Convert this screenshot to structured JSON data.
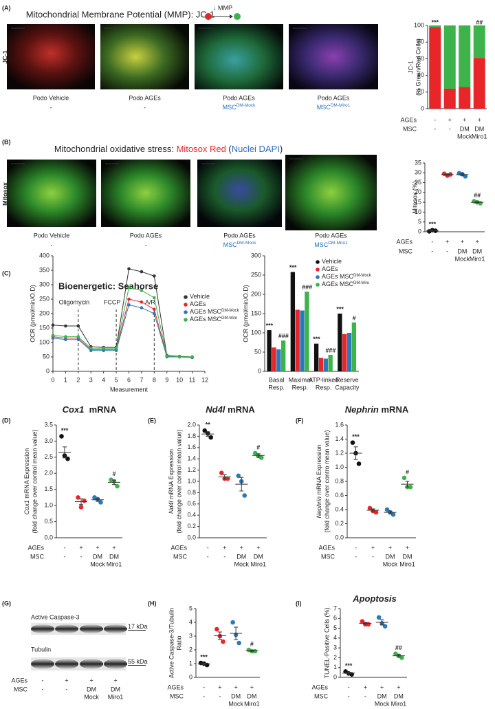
{
  "panel_labels": [
    "(A)",
    "(B)",
    "(C)",
    "(D)",
    "(E)",
    "(F)",
    "(G)",
    "(H)",
    "(I)"
  ],
  "panels": {
    "A": {
      "title": "Mitochondrial Membrane Potential (MMP): JC-1",
      "arrow_label": "↓ MMP",
      "side_label": "JC-1",
      "captions": [
        {
          "line1": "Podo Vehicle",
          "line2": "-"
        },
        {
          "line1": "Podo AGEs",
          "line2": "-"
        },
        {
          "line1": "Podo AGEs",
          "line2": {
            "text": "MSC",
            "sup": "DM-Mock",
            "color": "#2a6ebd"
          }
        },
        {
          "line1": "Podo AGEs",
          "line2": {
            "text": "MSC",
            "sup": "DM-Miro1",
            "color": "#2a6ebd"
          }
        }
      ]
    },
    "B": {
      "title": [
        {
          "text": "Mitochondrial oxidative stress: ",
          "color": "#222"
        },
        {
          "text": "Mitosox Red",
          "color": "#e8262a"
        },
        {
          "text": " (",
          "color": "#222"
        },
        {
          "text": "Nuclei DAPI",
          "color": "#2a6ebd"
        },
        {
          "text": ")",
          "color": "#222"
        }
      ],
      "side_label": "Mitosox",
      "line1_color": "#3cb44b",
      "captions": [
        {
          "line1": "Podo Vehicle",
          "line2": "-"
        },
        {
          "line1": "Podo AGEs",
          "line2": "-"
        },
        {
          "line1": "Podo AGEs",
          "line2": {
            "text": "MSC",
            "sup": "DM-Mock",
            "color": "#2a6ebd"
          }
        },
        {
          "line1": "Podo AGEs",
          "line2": {
            "text": "MSC",
            "sup": "DM-Miro1",
            "color": "#2a6ebd"
          }
        }
      ]
    },
    "G": {
      "bands": [
        {
          "label": "Active Caspase-3",
          "size": "17 kDa"
        },
        {
          "label": "Tubulin",
          "size": "55 kDa"
        }
      ],
      "conditions": [
        {
          "label": "AGEs",
          "values": [
            "-",
            "+",
            "+",
            "+"
          ]
        },
        {
          "label": "MSC",
          "values": [
            "-",
            "-",
            [
              "DM",
              "Mock"
            ],
            [
              "DM",
              "Miro1"
            ]
          ]
        }
      ]
    }
  },
  "chart_data": [
    {
      "type": "bar",
      "stacked": true,
      "ylabel": "JC-1",
      "ylabel2": "(% Green/Red Cells)",
      "ylim": [
        0,
        100
      ],
      "yticks": [
        0,
        20,
        40,
        60,
        80,
        100
      ],
      "series": [
        {
          "color": "#e8262a",
          "values": [
            98,
            24,
            26,
            61
          ]
        },
        {
          "color": "#3cb44b",
          "values": [
            2,
            76,
            74,
            39
          ]
        }
      ],
      "annotations": [
        {
          "text": "***",
          "index": 0
        },
        {
          "text": "##",
          "index": 3
        }
      ],
      "conditions": [
        {
          "label": "AGEs",
          "values": [
            "-",
            "+",
            "+",
            "+"
          ]
        },
        {
          "label": "MSC",
          "values": [
            "-",
            "-",
            [
              "DM",
              "Mock"
            ],
            [
              "DM",
              "Miro1"
            ]
          ]
        }
      ]
    },
    {
      "type": "dot",
      "ylabel": "Mitosox (%)",
      "ylim": [
        0,
        35
      ],
      "yticks": [
        0,
        5,
        10,
        15,
        20,
        25,
        30,
        35
      ],
      "groups": [
        {
          "color": "#111111",
          "points": [
            0.2,
            0.5,
            0.8
          ],
          "mean": 0.5,
          "sem": 0.2
        },
        {
          "color": "#e8262a",
          "points": [
            29.5,
            29.2,
            28.6
          ],
          "mean": 29.1,
          "sem": 0.3
        },
        {
          "color": "#2a7ab8",
          "points": [
            29.8,
            28.2,
            29.3
          ],
          "mean": 29.1,
          "sem": 0.5
        },
        {
          "color": "#3cb44b",
          "points": [
            15.5,
            14.5,
            15.0
          ],
          "mean": 15.0,
          "sem": 0.3
        }
      ],
      "annotations": [
        {
          "text": "***",
          "group": 0
        },
        {
          "text": "##",
          "group": 3
        }
      ],
      "conditions": [
        {
          "label": "AGEs",
          "values": [
            "-",
            "+",
            "+",
            "+"
          ]
        },
        {
          "label": "MSC",
          "values": [
            "-",
            "-",
            [
              "DM",
              "Mock"
            ],
            [
              "DM",
              "Miro1"
            ]
          ]
        }
      ]
    },
    {
      "type": "line",
      "title": "Bioenergetic: Seahorse",
      "xlabel": "Measurement",
      "ylabel": "OCR (pmol/min/O.D)",
      "x": [
        0,
        1,
        2,
        3,
        4,
        5,
        6,
        7,
        8,
        9,
        10,
        11
      ],
      "xlim": [
        0,
        12
      ],
      "xticks": [
        0,
        1,
        2,
        3,
        4,
        5,
        6,
        7,
        8,
        9,
        10,
        11,
        12
      ],
      "ylim": [
        0,
        400
      ],
      "yticks": [
        0,
        50,
        100,
        150,
        200,
        250,
        300,
        350,
        400
      ],
      "legend": "upper right",
      "events": [
        {
          "x": 2,
          "label": "Oligomycin"
        },
        {
          "x": 5,
          "label": "FCCP"
        },
        {
          "x": 8,
          "label": "A/R"
        }
      ],
      "series": [
        {
          "name": "Vehicle",
          "color": "#333333",
          "values": [
            160,
            157,
            157,
            85,
            83,
            83,
            355,
            345,
            330,
            55,
            52,
            50
          ]
        },
        {
          "name": "AGEs",
          "color": "#e8262a",
          "values": [
            120,
            115,
            115,
            75,
            75,
            75,
            250,
            240,
            215,
            52,
            50,
            48
          ]
        },
        {
          "name": "AGEs MSC",
          "sup": "DM-Mock",
          "color": "#2a7ab8",
          "values": [
            115,
            110,
            110,
            72,
            72,
            72,
            230,
            220,
            200,
            50,
            50,
            48
          ]
        },
        {
          "name": "AGEs MSC",
          "sup": "DM-Miro",
          "color": "#3cb44b",
          "values": [
            125,
            120,
            120,
            80,
            80,
            80,
            290,
            280,
            255,
            53,
            51,
            50
          ]
        }
      ]
    },
    {
      "type": "bar",
      "ylabel": "OCR (pmol/min/O.D)",
      "ylim": [
        0,
        300
      ],
      "yticks": [
        0,
        50,
        100,
        150,
        200,
        250,
        300
      ],
      "legend": "upper right",
      "categories": [
        [
          "Basal",
          "Resp."
        ],
        [
          "Maximal",
          "Resp."
        ],
        [
          "ATP-linked",
          "Resp."
        ],
        [
          "Reserve",
          "Capacity"
        ]
      ],
      "series": [
        {
          "name": "Vehicle",
          "color": "#111111",
          "values": [
            107,
            258,
            72,
            150
          ]
        },
        {
          "name": "AGEs",
          "color": "#e8262a",
          "values": [
            62,
            160,
            35,
            97
          ]
        },
        {
          "name": "AGEs MSC",
          "sup": "DM-Mock",
          "color": "#2a7ab8",
          "values": [
            57,
            158,
            33,
            100
          ]
        },
        {
          "name": "AGEs MSC",
          "sup": "DM-Miro",
          "color": "#3cb44b",
          "values": [
            80,
            207,
            43,
            127
          ]
        }
      ],
      "annotations": [
        {
          "text": "***",
          "category": 0,
          "series": 0
        },
        {
          "text": "***",
          "category": 1,
          "series": 0
        },
        {
          "text": "***",
          "category": 2,
          "series": 0
        },
        {
          "text": "***",
          "category": 3,
          "series": 0
        },
        {
          "text": "###",
          "category": 0,
          "series": 3
        },
        {
          "text": "###",
          "category": 1,
          "series": 3
        },
        {
          "text": "###",
          "category": 2,
          "series": 3
        },
        {
          "text": "#",
          "category": 3,
          "series": 3
        }
      ]
    },
    {
      "type": "dot",
      "title": [
        {
          "text": "Cox1",
          "italic": true
        },
        {
          "text": "  mRNA"
        }
      ],
      "ylabel": [
        {
          "text": "Cox1",
          "italic": true
        },
        {
          "text": " mRNA Expression"
        }
      ],
      "ylabel2": "(fold change over control mean value)",
      "ylim": [
        0,
        3.5
      ],
      "yticks": [
        {
          "value": 0,
          "label": "0.0"
        },
        0.5,
        {
          "value": 1,
          "label": "1.0"
        },
        1.5,
        {
          "value": 2,
          "label": "2.0"
        },
        2.5,
        {
          "value": 3,
          "label": "3.0"
        },
        3.5
      ],
      "groups": [
        {
          "color": "#111111",
          "points": [
            3.15,
            2.45,
            2.55
          ],
          "mean": 2.65,
          "sem": 0.17
        },
        {
          "color": "#e8262a",
          "points": [
            1.25,
            1.15,
            0.95
          ],
          "mean": 1.12,
          "sem": 0.09
        },
        {
          "color": "#2a7ab8",
          "points": [
            1.25,
            1.1,
            1.2
          ],
          "mean": 1.18,
          "sem": 0.05
        },
        {
          "color": "#3cb44b",
          "points": [
            1.8,
            1.6,
            1.75
          ],
          "mean": 1.72,
          "sem": 0.07
        }
      ],
      "annotations": [
        {
          "text": "***",
          "group": 0
        },
        {
          "text": "#",
          "group": 3
        }
      ],
      "conditions": [
        {
          "label": "AGEs",
          "values": [
            "-",
            "+",
            "+",
            "+"
          ]
        },
        {
          "label": "MSC",
          "values": [
            "-",
            "-",
            [
              "DM",
              "Mock"
            ],
            [
              "DM",
              "Miro1"
            ]
          ]
        }
      ]
    },
    {
      "type": "dot",
      "title": [
        {
          "text": "Nd4l",
          "italic": true
        },
        {
          "text": " mRNA"
        }
      ],
      "ylabel": [
        {
          "text": "Nd4l",
          "italic": true
        },
        {
          "text": " mRNA Expression"
        }
      ],
      "ylabel2": "(fold change over control mean value)",
      "ylim": [
        0,
        2
      ],
      "yticks": [
        {
          "value": 0,
          "label": "0.0"
        },
        0.2,
        0.4,
        0.6,
        0.8,
        {
          "value": 1,
          "label": "1.0"
        },
        1.2,
        1.4,
        1.6,
        1.8,
        {
          "value": 2,
          "label": "2.0"
        }
      ],
      "groups": [
        {
          "color": "#111111",
          "points": [
            1.9,
            1.78,
            1.85
          ],
          "mean": 1.84,
          "sem": 0.04
        },
        {
          "color": "#e8262a",
          "points": [
            1.15,
            1.05,
            1.05
          ],
          "mean": 1.08,
          "sem": 0.04
        },
        {
          "color": "#2a7ab8",
          "points": [
            1.1,
            0.75,
            1.0
          ],
          "mean": 0.95,
          "sem": 0.12
        },
        {
          "color": "#3cb44b",
          "points": [
            1.5,
            1.42,
            1.45
          ],
          "mean": 1.46,
          "sem": 0.03
        }
      ],
      "annotations": [
        {
          "text": "**",
          "group": 0
        },
        {
          "text": "#",
          "group": 3
        }
      ],
      "conditions": [
        {
          "label": "AGEs",
          "values": [
            "-",
            "+",
            "+",
            "+"
          ]
        },
        {
          "label": "MSC",
          "values": [
            "-",
            "-",
            [
              "DM",
              "Mock"
            ],
            [
              "DM",
              "Miro1"
            ]
          ]
        }
      ]
    },
    {
      "type": "dot",
      "title": [
        {
          "text": "Nephrin",
          "italic": true
        },
        {
          "text": " mRNA"
        }
      ],
      "ylabel": [
        {
          "text": "Nephrin",
          "italic": true
        },
        {
          "text": " mRNA Expression"
        }
      ],
      "ylabel2": "(fold change over contro mean value)",
      "ylim": [
        0,
        1.6
      ],
      "yticks": [
        {
          "value": 0,
          "label": "0.0"
        },
        0.2,
        0.4,
        0.6,
        0.8,
        {
          "value": 1,
          "label": "1.0"
        },
        1.2,
        1.4,
        1.6
      ],
      "groups": [
        {
          "color": "#111111",
          "points": [
            1.35,
            1.05,
            1.2
          ],
          "mean": 1.2,
          "sem": 0.09
        },
        {
          "color": "#e8262a",
          "points": [
            0.42,
            0.36,
            0.38
          ],
          "mean": 0.39,
          "sem": 0.02
        },
        {
          "color": "#2a7ab8",
          "points": [
            0.4,
            0.33,
            0.36
          ],
          "mean": 0.36,
          "sem": 0.02
        },
        {
          "color": "#3cb44b",
          "points": [
            0.85,
            0.72,
            0.72
          ],
          "mean": 0.76,
          "sem": 0.04
        }
      ],
      "annotations": [
        {
          "text": "***",
          "group": 0
        },
        {
          "text": "#",
          "group": 3
        }
      ],
      "conditions": [
        {
          "label": "AGEs",
          "values": [
            "-",
            "+",
            "+",
            "+"
          ]
        },
        {
          "label": "MSC",
          "values": [
            "-",
            "-",
            [
              "DM",
              "Mock"
            ],
            [
              "DM",
              "Miro1"
            ]
          ]
        }
      ]
    },
    {
      "type": "dot",
      "ylabel": "Active Caspase-3/Tubulin",
      "ylabel2": "Ratio",
      "ylim": [
        0,
        5
      ],
      "yticks": [
        0,
        1,
        2,
        3,
        4,
        5
      ],
      "groups": [
        {
          "color": "#111111",
          "points": [
            1.05,
            0.9,
            1.0
          ],
          "mean": 0.98,
          "sem": 0.05
        },
        {
          "color": "#e8262a",
          "points": [
            3.5,
            2.6,
            3.0
          ],
          "mean": 3.03,
          "sem": 0.27
        },
        {
          "color": "#2a7ab8",
          "points": [
            4.0,
            2.5,
            3.1
          ],
          "mean": 3.2,
          "sem": 0.45
        },
        {
          "color": "#3cb44b",
          "points": [
            2.0,
            1.9,
            1.9
          ],
          "mean": 1.93,
          "sem": 0.04
        }
      ],
      "annotations": [
        {
          "text": "***",
          "group": 0
        },
        {
          "text": "#",
          "group": 3
        }
      ],
      "conditions": [
        {
          "label": "AGEs",
          "values": [
            "-",
            "+",
            "+",
            "+"
          ]
        },
        {
          "label": "MSC",
          "values": [
            "-",
            "-",
            [
              "DM",
              "Mock"
            ],
            [
              "DM",
              "Miro1"
            ]
          ]
        }
      ]
    },
    {
      "type": "dot",
      "title": [
        {
          "text": "Apoptosis",
          "italic": true
        }
      ],
      "ylabel": "TUNEL-Positive Cells (%)",
      "ylim": [
        0,
        7
      ],
      "yticks": [
        0,
        1,
        2,
        3,
        4,
        5,
        6,
        7
      ],
      "groups": [
        {
          "color": "#111111",
          "points": [
            0.6,
            0.3,
            0.4
          ],
          "mean": 0.43,
          "sem": 0.09
        },
        {
          "color": "#e8262a",
          "points": [
            5.7,
            5.4,
            5.4
          ],
          "mean": 5.5,
          "sem": 0.1
        },
        {
          "color": "#2a7ab8",
          "points": [
            6.1,
            5.2,
            5.5
          ],
          "mean": 5.6,
          "sem": 0.27
        },
        {
          "color": "#3cb44b",
          "points": [
            2.4,
            2.0,
            2.2
          ],
          "mean": 2.2,
          "sem": 0.12
        }
      ],
      "annotations": [
        {
          "text": "***",
          "group": 0
        },
        {
          "text": "##",
          "group": 3
        }
      ],
      "conditions": [
        {
          "label": "AGEs",
          "values": [
            "-",
            "+",
            "+",
            "+"
          ]
        },
        {
          "label": "MSC",
          "values": [
            "-",
            "-",
            [
              "DM",
              "Mock"
            ],
            [
              "DM",
              "Miro1"
            ]
          ]
        }
      ]
    }
  ]
}
